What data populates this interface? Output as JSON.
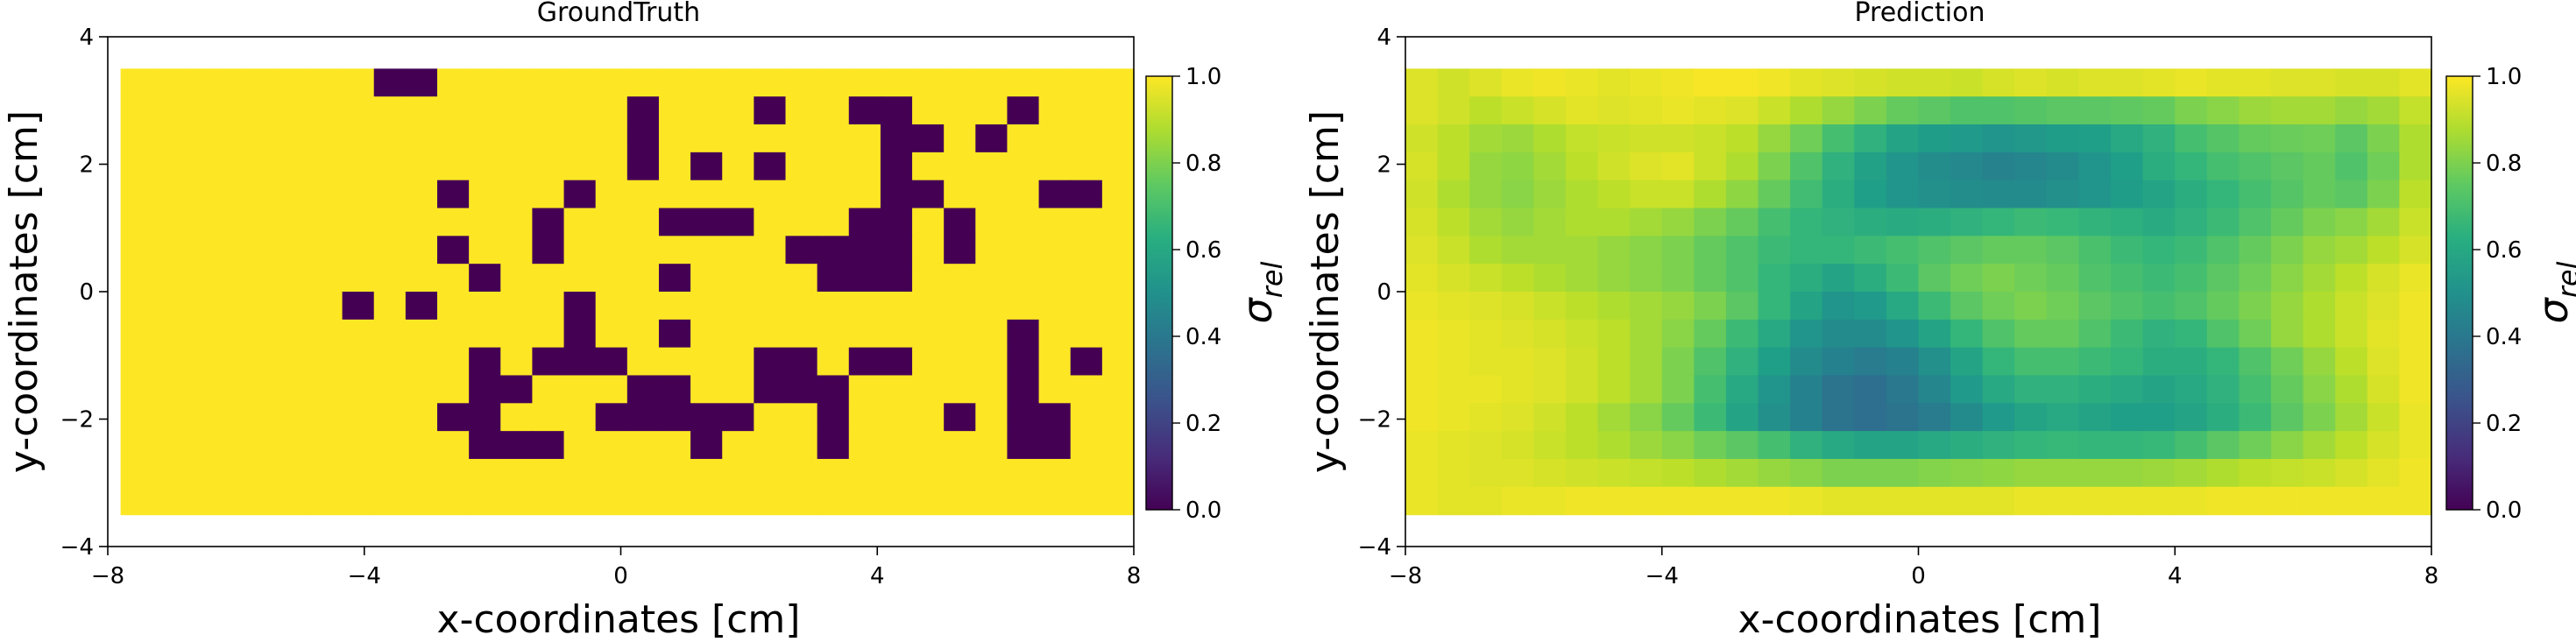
{
  "chart_data": [
    {
      "type": "heatmap",
      "title": "GroundTruth",
      "xlabel": "x-coordinates [cm]",
      "ylabel": "y-coordinates [cm]",
      "xlim": [
        -8,
        8
      ],
      "ylim": [
        -4,
        4
      ],
      "xticks": [
        "−8",
        "−4",
        "0",
        "4",
        "8"
      ],
      "yticks": [
        "−4",
        "−2",
        "0",
        "2",
        "4"
      ],
      "grid": false,
      "colormap": "viridis",
      "colorbar": {
        "label_symbol": "σ",
        "label_subscript": "rel",
        "range": [
          0.0,
          1.0
        ],
        "ticks": [
          "0.0",
          "0.2",
          "0.4",
          "0.6",
          "0.8",
          "1.0"
        ]
      },
      "extent": {
        "x": [
          -7.8,
          8.0
        ],
        "y": [
          -3.5,
          3.5
        ]
      },
      "grid_size": {
        "cols": 32,
        "rows": 16
      },
      "cell_value_default": 1.0,
      "cells_value_zero_rows_top_to_bottom": [
        [
          8,
          9
        ],
        [
          16,
          20,
          23,
          24,
          28
        ],
        [
          16,
          24,
          25,
          27
        ],
        [
          16,
          18,
          20,
          24
        ],
        [
          10,
          14,
          24,
          25,
          29,
          30
        ],
        [
          13,
          17,
          18,
          19,
          23,
          24,
          26
        ],
        [
          10,
          13,
          21,
          22,
          23,
          24,
          26
        ],
        [
          11,
          17,
          22,
          23,
          24
        ],
        [
          7,
          9,
          14
        ],
        [
          14,
          17,
          28
        ],
        [
          11,
          13,
          14,
          15,
          20,
          21,
          23,
          24,
          28,
          30
        ],
        [
          11,
          12,
          16,
          17,
          20,
          21,
          22,
          28
        ],
        [
          10,
          11,
          15,
          16,
          17,
          18,
          19,
          22,
          26,
          28,
          29
        ],
        [
          11,
          12,
          13,
          18,
          22,
          28,
          29
        ],
        [],
        []
      ]
    },
    {
      "type": "heatmap",
      "title": "Prediction",
      "xlabel": "x-coordinates [cm]",
      "ylabel": "y-coordinates [cm]",
      "xlim": [
        -8,
        8
      ],
      "ylim": [
        -4,
        4
      ],
      "xticks": [
        "−8",
        "−4",
        "0",
        "4",
        "8"
      ],
      "yticks": [
        "−4",
        "−2",
        "0",
        "2",
        "4"
      ],
      "grid": false,
      "colormap": "viridis",
      "colorbar": {
        "label_symbol": "σ",
        "label_subscript": "rel",
        "range": [
          0.0,
          1.0
        ],
        "ticks": [
          "0.0",
          "0.2",
          "0.4",
          "0.6",
          "0.8",
          "1.0"
        ]
      },
      "extent": {
        "x": [
          -8.0,
          8.0
        ],
        "y": [
          -3.5,
          3.5
        ]
      },
      "grid_size": {
        "cols": 32,
        "rows": 16
      },
      "values_rows_top_to_bottom": [
        [
          0.95,
          0.93,
          0.95,
          0.97,
          0.98,
          0.97,
          0.96,
          0.97,
          0.98,
          0.99,
          0.99,
          0.98,
          0.96,
          0.95,
          0.94,
          0.93,
          0.93,
          0.92,
          0.94,
          0.95,
          0.94,
          0.95,
          0.95,
          0.96,
          0.97,
          0.96,
          0.96,
          0.95,
          0.95,
          0.94,
          0.94,
          0.96
        ],
        [
          0.95,
          0.93,
          0.9,
          0.92,
          0.94,
          0.96,
          0.95,
          0.96,
          0.97,
          0.96,
          0.95,
          0.92,
          0.88,
          0.84,
          0.8,
          0.76,
          0.74,
          0.72,
          0.72,
          0.73,
          0.74,
          0.74,
          0.75,
          0.76,
          0.8,
          0.82,
          0.85,
          0.86,
          0.86,
          0.84,
          0.86,
          0.91
        ],
        [
          0.93,
          0.9,
          0.86,
          0.85,
          0.88,
          0.91,
          0.92,
          0.93,
          0.93,
          0.92,
          0.9,
          0.84,
          0.78,
          0.7,
          0.64,
          0.58,
          0.55,
          0.54,
          0.52,
          0.53,
          0.55,
          0.56,
          0.6,
          0.64,
          0.7,
          0.73,
          0.76,
          0.77,
          0.78,
          0.74,
          0.8,
          0.88
        ],
        [
          0.94,
          0.9,
          0.84,
          0.83,
          0.86,
          0.9,
          0.93,
          0.95,
          0.96,
          0.92,
          0.88,
          0.8,
          0.72,
          0.64,
          0.57,
          0.52,
          0.49,
          0.47,
          0.45,
          0.46,
          0.48,
          0.52,
          0.56,
          0.62,
          0.66,
          0.7,
          0.72,
          0.74,
          0.76,
          0.72,
          0.78,
          0.88
        ],
        [
          0.93,
          0.88,
          0.84,
          0.82,
          0.85,
          0.88,
          0.9,
          0.92,
          0.92,
          0.88,
          0.83,
          0.76,
          0.69,
          0.62,
          0.56,
          0.52,
          0.5,
          0.49,
          0.48,
          0.48,
          0.5,
          0.52,
          0.55,
          0.58,
          0.62,
          0.66,
          0.7,
          0.73,
          0.76,
          0.74,
          0.8,
          0.9
        ],
        [
          0.94,
          0.9,
          0.86,
          0.84,
          0.86,
          0.88,
          0.88,
          0.86,
          0.84,
          0.8,
          0.76,
          0.7,
          0.66,
          0.64,
          0.62,
          0.61,
          0.62,
          0.64,
          0.66,
          0.68,
          0.67,
          0.65,
          0.63,
          0.61,
          0.64,
          0.68,
          0.72,
          0.76,
          0.8,
          0.82,
          0.86,
          0.92
        ],
        [
          0.95,
          0.92,
          0.88,
          0.86,
          0.86,
          0.86,
          0.84,
          0.82,
          0.8,
          0.76,
          0.72,
          0.68,
          0.66,
          0.66,
          0.68,
          0.7,
          0.72,
          0.74,
          0.76,
          0.76,
          0.74,
          0.71,
          0.68,
          0.66,
          0.68,
          0.72,
          0.76,
          0.8,
          0.84,
          0.86,
          0.9,
          0.94
        ],
        [
          0.96,
          0.94,
          0.92,
          0.9,
          0.88,
          0.86,
          0.84,
          0.82,
          0.8,
          0.76,
          0.72,
          0.66,
          0.62,
          0.58,
          0.62,
          0.68,
          0.74,
          0.78,
          0.8,
          0.78,
          0.76,
          0.72,
          0.7,
          0.68,
          0.7,
          0.74,
          0.78,
          0.82,
          0.86,
          0.9,
          0.94,
          0.97
        ],
        [
          0.97,
          0.96,
          0.95,
          0.94,
          0.92,
          0.9,
          0.88,
          0.86,
          0.84,
          0.8,
          0.74,
          0.66,
          0.58,
          0.52,
          0.54,
          0.6,
          0.68,
          0.74,
          0.78,
          0.8,
          0.78,
          0.74,
          0.72,
          0.7,
          0.72,
          0.76,
          0.8,
          0.84,
          0.88,
          0.92,
          0.95,
          0.98
        ],
        [
          0.98,
          0.97,
          0.96,
          0.95,
          0.94,
          0.92,
          0.9,
          0.86,
          0.82,
          0.76,
          0.68,
          0.6,
          0.52,
          0.48,
          0.48,
          0.52,
          0.58,
          0.66,
          0.72,
          0.76,
          0.76,
          0.72,
          0.68,
          0.64,
          0.66,
          0.72,
          0.78,
          0.84,
          0.88,
          0.92,
          0.96,
          0.98
        ],
        [
          0.98,
          0.97,
          0.96,
          0.96,
          0.95,
          0.93,
          0.9,
          0.86,
          0.8,
          0.72,
          0.64,
          0.56,
          0.48,
          0.44,
          0.42,
          0.44,
          0.5,
          0.58,
          0.66,
          0.7,
          0.7,
          0.68,
          0.66,
          0.62,
          0.62,
          0.66,
          0.72,
          0.78,
          0.84,
          0.9,
          0.95,
          0.98
        ],
        [
          0.98,
          0.97,
          0.97,
          0.96,
          0.95,
          0.93,
          0.9,
          0.86,
          0.8,
          0.7,
          0.6,
          0.52,
          0.44,
          0.38,
          0.36,
          0.4,
          0.46,
          0.54,
          0.6,
          0.64,
          0.64,
          0.62,
          0.6,
          0.58,
          0.6,
          0.64,
          0.7,
          0.76,
          0.82,
          0.88,
          0.94,
          0.98
        ],
        [
          0.98,
          0.97,
          0.96,
          0.95,
          0.93,
          0.9,
          0.86,
          0.82,
          0.76,
          0.68,
          0.58,
          0.5,
          0.44,
          0.38,
          0.36,
          0.38,
          0.42,
          0.48,
          0.54,
          0.58,
          0.6,
          0.58,
          0.56,
          0.56,
          0.58,
          0.62,
          0.68,
          0.74,
          0.8,
          0.86,
          0.92,
          0.97
        ],
        [
          0.97,
          0.96,
          0.95,
          0.94,
          0.92,
          0.9,
          0.88,
          0.85,
          0.82,
          0.78,
          0.74,
          0.7,
          0.64,
          0.6,
          0.58,
          0.58,
          0.6,
          0.62,
          0.64,
          0.66,
          0.67,
          0.66,
          0.66,
          0.67,
          0.7,
          0.74,
          0.78,
          0.82,
          0.86,
          0.9,
          0.94,
          0.97
        ],
        [
          0.97,
          0.96,
          0.95,
          0.95,
          0.94,
          0.93,
          0.92,
          0.91,
          0.9,
          0.88,
          0.86,
          0.84,
          0.82,
          0.8,
          0.8,
          0.8,
          0.81,
          0.82,
          0.83,
          0.84,
          0.84,
          0.84,
          0.84,
          0.85,
          0.86,
          0.88,
          0.9,
          0.91,
          0.92,
          0.94,
          0.96,
          0.98
        ],
        [
          0.97,
          0.96,
          0.96,
          0.97,
          0.97,
          0.98,
          0.98,
          0.98,
          0.98,
          0.98,
          0.98,
          0.98,
          0.97,
          0.96,
          0.96,
          0.96,
          0.96,
          0.96,
          0.96,
          0.97,
          0.97,
          0.97,
          0.97,
          0.97,
          0.97,
          0.98,
          0.98,
          0.98,
          0.98,
          0.98,
          0.98,
          0.98
        ]
      ]
    }
  ]
}
